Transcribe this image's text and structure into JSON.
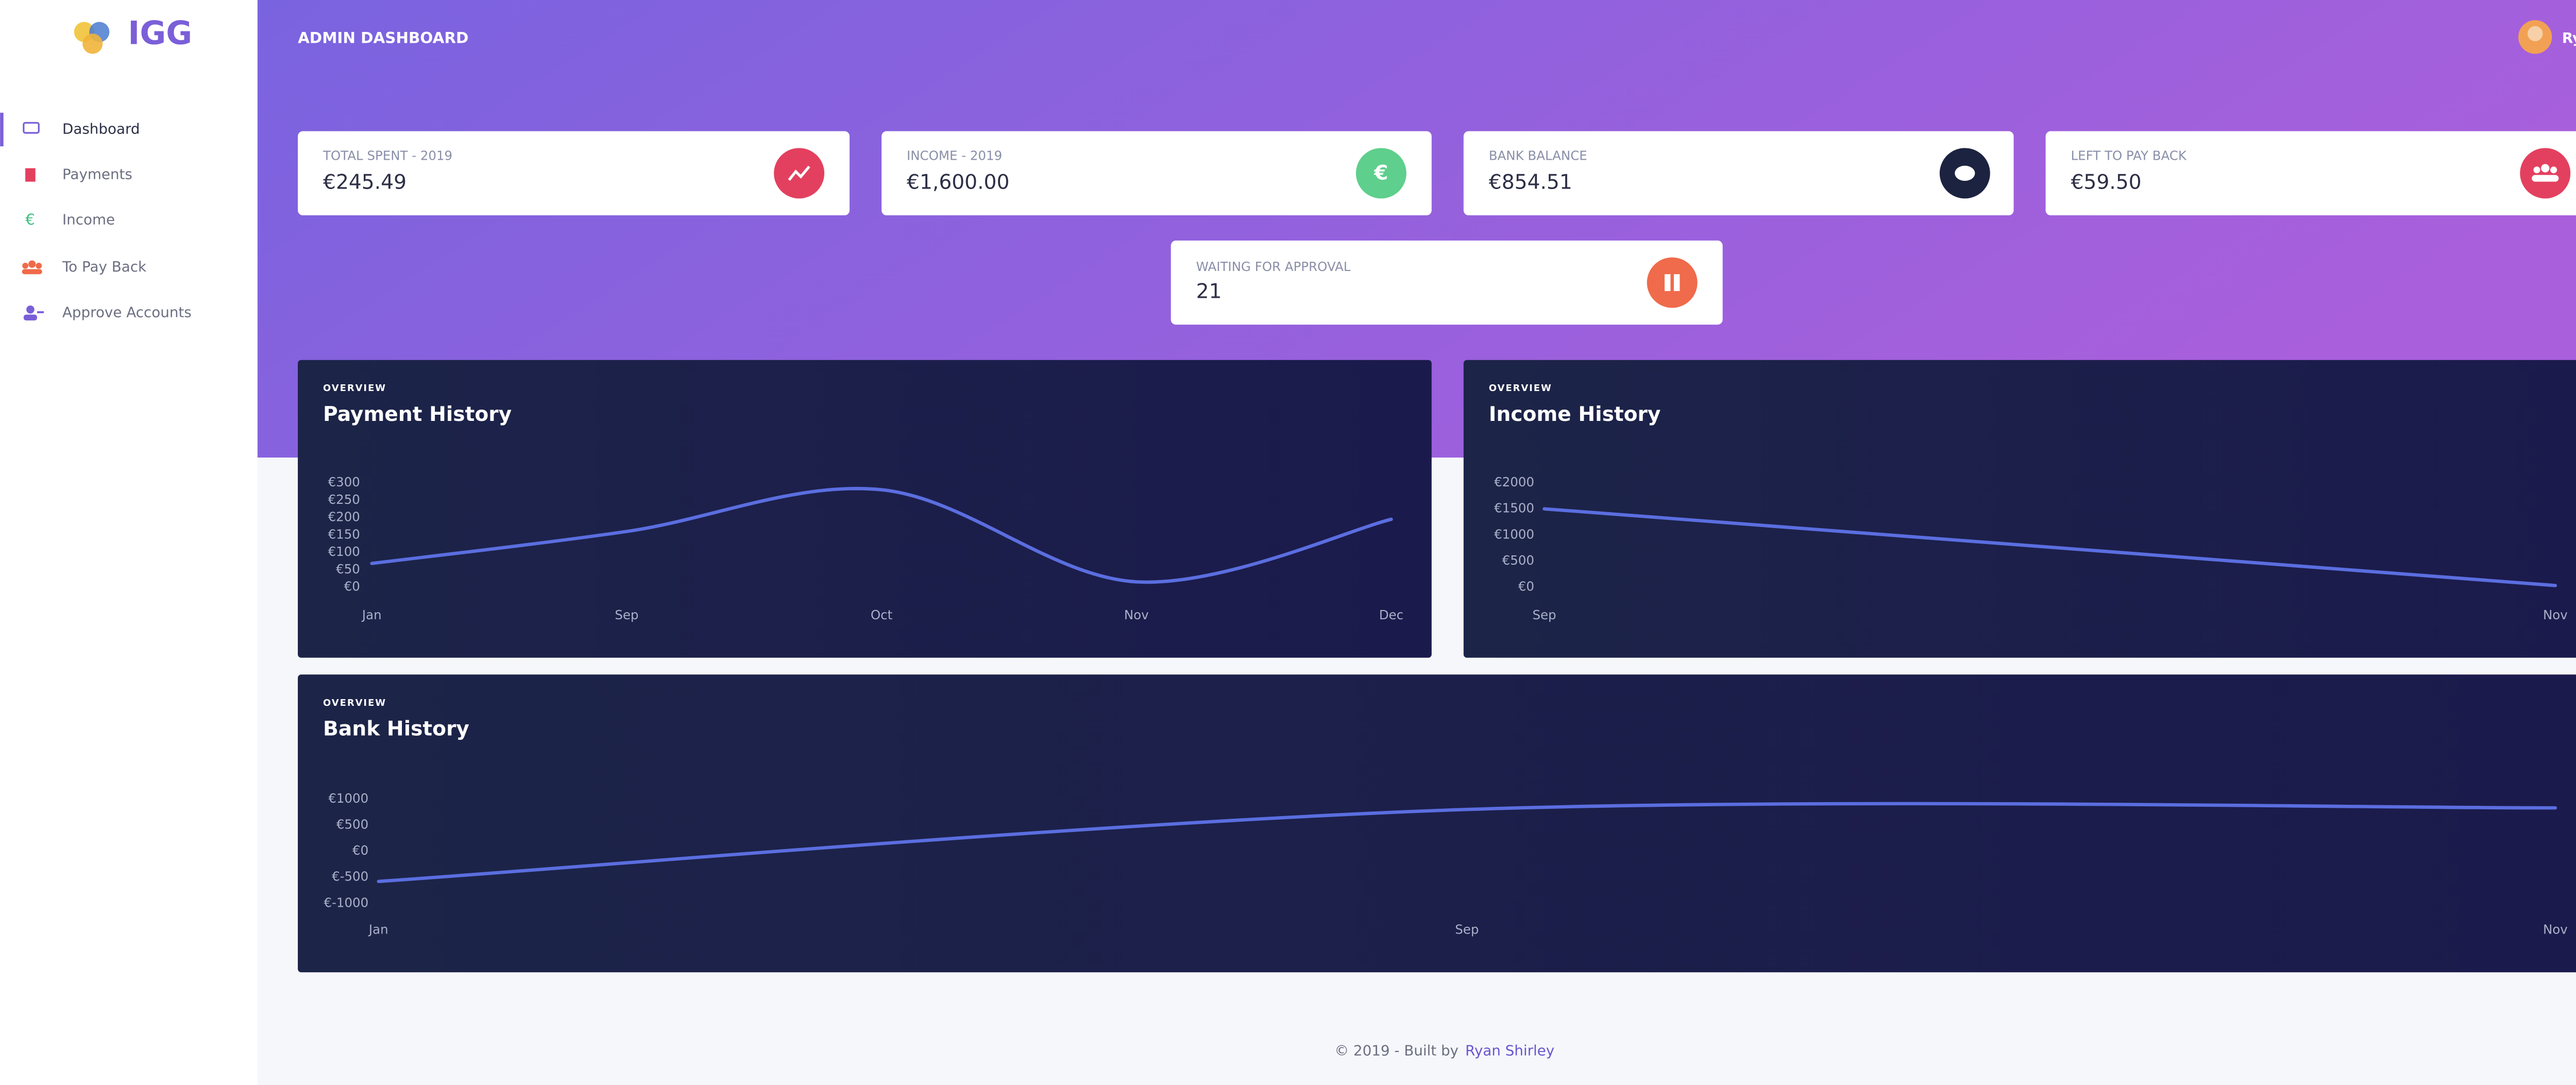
{
  "sidebar": {
    "brand": "IGG",
    "items": [
      "Dashboard",
      "Payments",
      "Income",
      "To Pay Back",
      "Approve Accounts"
    ]
  },
  "header": {
    "title": "ADMIN DASHBOARD",
    "user": "Ryan"
  },
  "cards": [
    {
      "label": "TOTAL SPENT - 2019",
      "value": "€245.49"
    },
    {
      "label": "INCOME - 2019",
      "value": "€1,600.00"
    },
    {
      "label": "BANK BALANCE",
      "value": "€854.51"
    },
    {
      "label": "LEFT TO PAY BACK",
      "value": "€59.50"
    },
    {
      "label": "WAITING FOR APPROVAL",
      "value": "21"
    }
  ],
  "chart_data": [
    {
      "type": "line",
      "subtitle": "OVERVIEW",
      "title": "Payment History",
      "categories": [
        "Jan",
        "Sep",
        "Oct",
        "Nov",
        "Dec"
      ],
      "values": [
        68,
        160,
        280,
        15,
        195
      ],
      "color": "#5b6ee0",
      "ylim": [
        0,
        300
      ],
      "yticks": [
        {
          "value": 0,
          "label": "€0"
        },
        {
          "value": 50,
          "label": "€50"
        },
        {
          "value": 100,
          "label": "€100"
        },
        {
          "value": 150,
          "label": "€150"
        },
        {
          "value": 200,
          "label": "€200"
        },
        {
          "value": 250,
          "label": "€250"
        },
        {
          "value": 300,
          "label": "€300"
        }
      ]
    },
    {
      "type": "line",
      "subtitle": "OVERVIEW",
      "title": "Income History",
      "categories": [
        "Sep",
        "Nov"
      ],
      "values": [
        1500,
        30
      ],
      "color": "#5b6ee0",
      "ylim": [
        0,
        2000
      ],
      "yticks": [
        {
          "value": 0,
          "label": "€0"
        },
        {
          "value": 500,
          "label": "€500"
        },
        {
          "value": 1000,
          "label": "€1000"
        },
        {
          "value": 1500,
          "label": "€1500"
        },
        {
          "value": 2000,
          "label": "€2000"
        }
      ]
    },
    {
      "type": "line",
      "subtitle": "OVERVIEW",
      "title": "Bank History",
      "categories": [
        "Jan",
        "Sep",
        "Nov"
      ],
      "values": [
        -580,
        800,
        830
      ],
      "color": "#5b6ee0",
      "ylim": [
        -1000,
        1000
      ],
      "yticks": [
        {
          "value": -1000,
          "label": "€-1000"
        },
        {
          "value": -500,
          "label": "€-500"
        },
        {
          "value": 0,
          "label": "€0"
        },
        {
          "value": 500,
          "label": "€500"
        },
        {
          "value": 1000,
          "label": "€1000"
        }
      ]
    }
  ],
  "footer": {
    "text": "© 2019 - Built by",
    "link": "Ryan Shirley"
  }
}
